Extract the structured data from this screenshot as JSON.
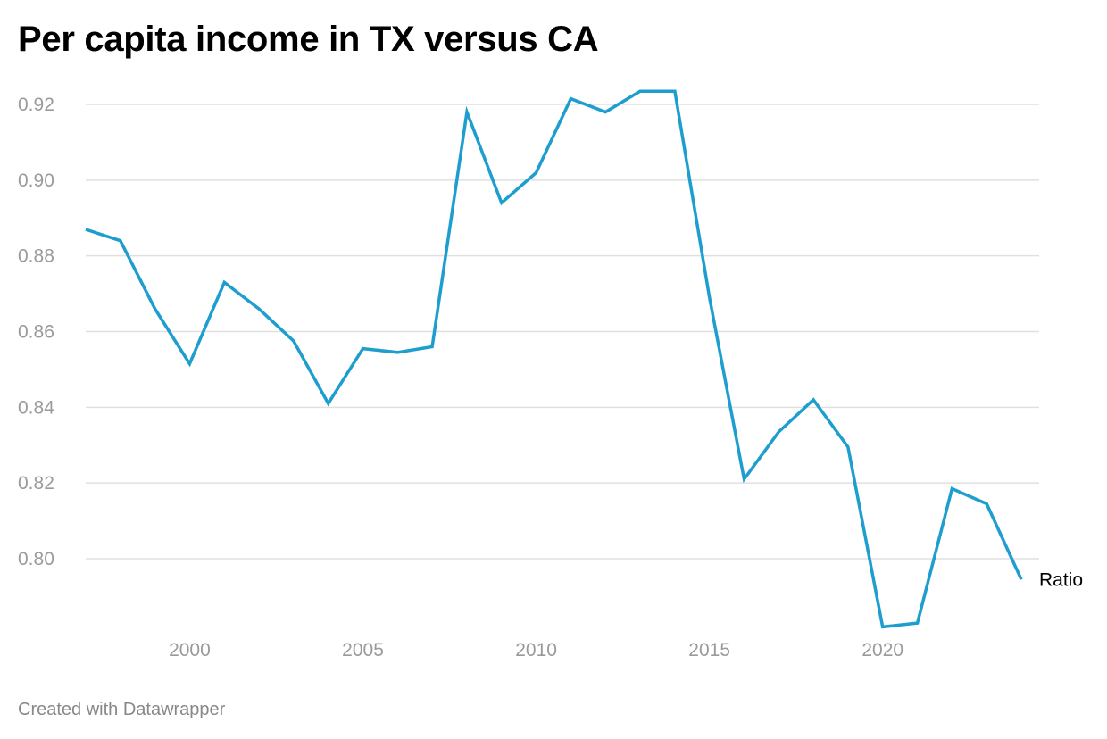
{
  "title": "Per capita income in TX versus CA",
  "footer": "Created with Datawrapper",
  "chart_data": {
    "type": "line",
    "title": "Per capita income in TX versus CA",
    "xlabel": "",
    "ylabel": "",
    "xlim": [
      1997,
      2024
    ],
    "ylim": [
      0.78,
      0.925
    ],
    "grid": true,
    "x_ticks": [
      2000,
      2005,
      2010,
      2015,
      2020
    ],
    "y_ticks": [
      0.8,
      0.82,
      0.84,
      0.86,
      0.88,
      0.9,
      0.92
    ],
    "series": [
      {
        "name": "Ratio",
        "color": "#1d9ecf",
        "x": [
          1997,
          1998,
          1999,
          2000,
          2001,
          2002,
          2003,
          2004,
          2005,
          2006,
          2007,
          2008,
          2009,
          2010,
          2011,
          2012,
          2013,
          2014,
          2015,
          2016,
          2017,
          2018,
          2019,
          2020,
          2021,
          2022,
          2023,
          2024
        ],
        "values": [
          0.887,
          0.884,
          0.866,
          0.8515,
          0.873,
          0.866,
          0.8575,
          0.841,
          0.8555,
          0.8545,
          0.856,
          0.918,
          0.894,
          0.902,
          0.9215,
          0.918,
          0.9235,
          0.9235,
          0.869,
          0.821,
          0.8335,
          0.842,
          0.8295,
          0.782,
          0.783,
          0.8185,
          0.8145,
          0.7945
        ]
      }
    ]
  }
}
